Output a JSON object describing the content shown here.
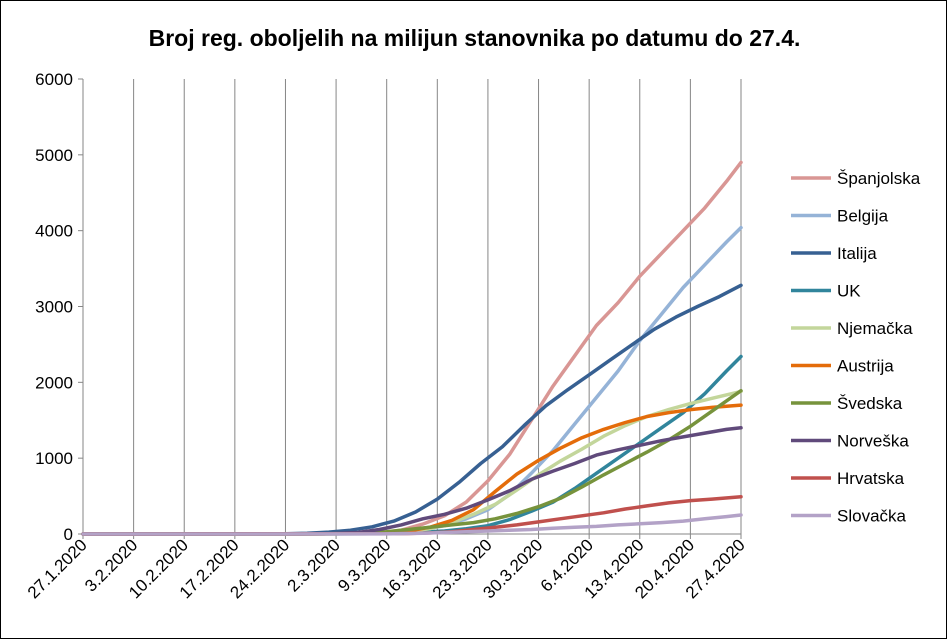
{
  "chart_data": {
    "type": "line",
    "title": "Broj reg. oboljelih na milijun stanovnika po datumu do 27.4.",
    "xlabel": "",
    "ylabel": "",
    "ylim": [
      0,
      6000
    ],
    "yticks": [
      0,
      1000,
      2000,
      3000,
      4000,
      5000,
      6000
    ],
    "x_range": [
      "27.1.2020",
      "27.4.2020"
    ],
    "x_tick_labels": [
      "27.1.2020",
      "3.2.2020",
      "10.2.2020",
      "17.2.2020",
      "24.2.2020",
      "2.3.2020",
      "9.3.2020",
      "16.3.2020",
      "23.3.2020",
      "30.3.2020",
      "6.4.2020",
      "13.4.2020",
      "20.4.2020",
      "27.4.2020"
    ],
    "grid": "vertical",
    "legend_position": "right",
    "series": [
      {
        "name": "Španjolska",
        "color": "#d99694",
        "points": [
          [
            "27.1.2020",
            0
          ],
          [
            "24.2.2020",
            0
          ],
          [
            "1.3.2020",
            2
          ],
          [
            "4.3.2020",
            5
          ],
          [
            "8.3.2020",
            15
          ],
          [
            "11.3.2020",
            50
          ],
          [
            "14.3.2020",
            130
          ],
          [
            "17.3.2020",
            240
          ],
          [
            "20.3.2020",
            420
          ],
          [
            "23.3.2020",
            700
          ],
          [
            "26.3.2020",
            1050
          ],
          [
            "29.3.2020",
            1500
          ],
          [
            "1.4.2020",
            1950
          ],
          [
            "4.4.2020",
            2350
          ],
          [
            "7.4.2020",
            2750
          ],
          [
            "10.4.2020",
            3050
          ],
          [
            "13.4.2020",
            3400
          ],
          [
            "16.4.2020",
            3700
          ],
          [
            "19.4.2020",
            4000
          ],
          [
            "22.4.2020",
            4300
          ],
          [
            "25.4.2020",
            4650
          ],
          [
            "27.4.2020",
            4900
          ]
        ]
      },
      {
        "name": "Belgija",
        "color": "#95b3d7",
        "points": [
          [
            "27.1.2020",
            0
          ],
          [
            "24.2.2020",
            0
          ],
          [
            "3.3.2020",
            2
          ],
          [
            "7.3.2020",
            15
          ],
          [
            "10.3.2020",
            30
          ],
          [
            "14.3.2020",
            60
          ],
          [
            "17.3.2020",
            110
          ],
          [
            "20.3.2020",
            200
          ],
          [
            "23.3.2020",
            320
          ],
          [
            "26.3.2020",
            520
          ],
          [
            "29.3.2020",
            800
          ],
          [
            "1.4.2020",
            1100
          ],
          [
            "4.4.2020",
            1450
          ],
          [
            "7.4.2020",
            1800
          ],
          [
            "10.4.2020",
            2150
          ],
          [
            "13.4.2020",
            2550
          ],
          [
            "16.4.2020",
            2900
          ],
          [
            "19.4.2020",
            3250
          ],
          [
            "22.4.2020",
            3550
          ],
          [
            "25.4.2020",
            3850
          ],
          [
            "27.4.2020",
            4040
          ]
        ]
      },
      {
        "name": "Italija",
        "color": "#376092",
        "points": [
          [
            "27.1.2020",
            0
          ],
          [
            "21.2.2020",
            1
          ],
          [
            "24.2.2020",
            4
          ],
          [
            "27.2.2020",
            10
          ],
          [
            "1.3.2020",
            25
          ],
          [
            "4.3.2020",
            50
          ],
          [
            "7.3.2020",
            95
          ],
          [
            "10.3.2020",
            170
          ],
          [
            "13.3.2020",
            290
          ],
          [
            "16.3.2020",
            460
          ],
          [
            "19.3.2020",
            680
          ],
          [
            "22.3.2020",
            930
          ],
          [
            "25.3.2020",
            1150
          ],
          [
            "28.3.2020",
            1430
          ],
          [
            "31.3.2020",
            1690
          ],
          [
            "3.4.2020",
            1900
          ],
          [
            "6.4.2020",
            2100
          ],
          [
            "9.4.2020",
            2300
          ],
          [
            "12.4.2020",
            2500
          ],
          [
            "15.4.2020",
            2700
          ],
          [
            "18.4.2020",
            2860
          ],
          [
            "21.4.2020",
            3000
          ],
          [
            "24.4.2020",
            3130
          ],
          [
            "27.4.2020",
            3280
          ]
        ]
      },
      {
        "name": "UK",
        "color": "#31859c",
        "points": [
          [
            "27.1.2020",
            0
          ],
          [
            "1.3.2020",
            1
          ],
          [
            "7.3.2020",
            4
          ],
          [
            "11.3.2020",
            10
          ],
          [
            "14.3.2020",
            25
          ],
          [
            "17.3.2020",
            40
          ],
          [
            "20.3.2020",
            70
          ],
          [
            "23.3.2020",
            110
          ],
          [
            "26.3.2020",
            190
          ],
          [
            "29.3.2020",
            300
          ],
          [
            "1.4.2020",
            420
          ],
          [
            "4.4.2020",
            600
          ],
          [
            "7.4.2020",
            800
          ],
          [
            "10.4.2020",
            1000
          ],
          [
            "13.4.2020",
            1200
          ],
          [
            "16.4.2020",
            1400
          ],
          [
            "19.4.2020",
            1600
          ],
          [
            "22.4.2020",
            1850
          ],
          [
            "25.4.2020",
            2150
          ],
          [
            "27.4.2020",
            2340
          ]
        ]
      },
      {
        "name": "Njemačka",
        "color": "#c3d69b",
        "points": [
          [
            "27.1.2020",
            0
          ],
          [
            "24.2.2020",
            0
          ],
          [
            "1.3.2020",
            1
          ],
          [
            "6.3.2020",
            8
          ],
          [
            "9.3.2020",
            15
          ],
          [
            "12.3.2020",
            30
          ],
          [
            "15.3.2020",
            70
          ],
          [
            "18.3.2020",
            150
          ],
          [
            "21.3.2020",
            260
          ],
          [
            "24.3.2020",
            390
          ],
          [
            "27.3.2020",
            580
          ],
          [
            "30.3.2020",
            780
          ],
          [
            "2.4.2020",
            960
          ],
          [
            "5.4.2020",
            1120
          ],
          [
            "8.4.2020",
            1290
          ],
          [
            "11.4.2020",
            1430
          ],
          [
            "14.4.2020",
            1550
          ],
          [
            "17.4.2020",
            1640
          ],
          [
            "20.4.2020",
            1720
          ],
          [
            "23.4.2020",
            1790
          ],
          [
            "27.4.2020",
            1880
          ]
        ]
      },
      {
        "name": "Austrija",
        "color": "#e46c0a",
        "points": [
          [
            "27.1.2020",
            0
          ],
          [
            "28.2.2020",
            1
          ],
          [
            "3.3.2020",
            2
          ],
          [
            "6.3.2020",
            5
          ],
          [
            "9.3.2020",
            15
          ],
          [
            "12.3.2020",
            40
          ],
          [
            "15.3.2020",
            90
          ],
          [
            "18.3.2020",
            180
          ],
          [
            "21.3.2020",
            320
          ],
          [
            "24.3.2020",
            560
          ],
          [
            "27.3.2020",
            790
          ],
          [
            "30.3.2020",
            970
          ],
          [
            "2.4.2020",
            1130
          ],
          [
            "5.4.2020",
            1270
          ],
          [
            "8.4.2020",
            1380
          ],
          [
            "11.4.2020",
            1470
          ],
          [
            "14.4.2020",
            1550
          ],
          [
            "17.4.2020",
            1600
          ],
          [
            "20.4.2020",
            1640
          ],
          [
            "23.4.2020",
            1670
          ],
          [
            "27.4.2020",
            1700
          ]
        ]
      },
      {
        "name": "Švedska",
        "color": "#77933c",
        "points": [
          [
            "27.1.2020",
            0
          ],
          [
            "26.2.2020",
            1
          ],
          [
            "1.3.2020",
            2
          ],
          [
            "5.3.2020",
            10
          ],
          [
            "9.3.2020",
            30
          ],
          [
            "12.3.2020",
            60
          ],
          [
            "15.3.2020",
            90
          ],
          [
            "18.3.2020",
            120
          ],
          [
            "21.3.2020",
            150
          ],
          [
            "24.3.2020",
            200
          ],
          [
            "27.3.2020",
            270
          ],
          [
            "30.3.2020",
            360
          ],
          [
            "2.4.2020",
            470
          ],
          [
            "5.4.2020",
            620
          ],
          [
            "8.4.2020",
            780
          ],
          [
            "11.4.2020",
            930
          ],
          [
            "14.4.2020",
            1080
          ],
          [
            "17.4.2020",
            1240
          ],
          [
            "20.4.2020",
            1420
          ],
          [
            "23.4.2020",
            1620
          ],
          [
            "27.4.2020",
            1890
          ]
        ]
      },
      {
        "name": "Norveška",
        "color": "#604a7b",
        "points": [
          [
            "27.1.2020",
            0
          ],
          [
            "26.2.2020",
            1
          ],
          [
            "1.3.2020",
            4
          ],
          [
            "5.3.2020",
            20
          ],
          [
            "8.3.2020",
            60
          ],
          [
            "11.3.2020",
            120
          ],
          [
            "14.3.2020",
            200
          ],
          [
            "17.3.2020",
            260
          ],
          [
            "20.3.2020",
            340
          ],
          [
            "23.3.2020",
            450
          ],
          [
            "26.3.2020",
            570
          ],
          [
            "29.3.2020",
            720
          ],
          [
            "1.4.2020",
            830
          ],
          [
            "4.4.2020",
            930
          ],
          [
            "7.4.2020",
            1040
          ],
          [
            "10.4.2020",
            1110
          ],
          [
            "13.4.2020",
            1170
          ],
          [
            "16.4.2020",
            1230
          ],
          [
            "19.4.2020",
            1280
          ],
          [
            "22.4.2020",
            1330
          ],
          [
            "25.4.2020",
            1380
          ],
          [
            "27.4.2020",
            1400
          ]
        ]
      },
      {
        "name": "Hrvatska",
        "color": "#c0504d",
        "points": [
          [
            "27.1.2020",
            0
          ],
          [
            "25.2.2020",
            1
          ],
          [
            "1.3.2020",
            2
          ],
          [
            "8.3.2020",
            3
          ],
          [
            "12.3.2020",
            6
          ],
          [
            "15.3.2020",
            15
          ],
          [
            "18.3.2020",
            30
          ],
          [
            "21.3.2020",
            60
          ],
          [
            "24.3.2020",
            90
          ],
          [
            "27.3.2020",
            120
          ],
          [
            "30.3.2020",
            160
          ],
          [
            "2.4.2020",
            200
          ],
          [
            "5.4.2020",
            240
          ],
          [
            "8.4.2020",
            280
          ],
          [
            "11.4.2020",
            330
          ],
          [
            "14.4.2020",
            370
          ],
          [
            "17.4.2020",
            410
          ],
          [
            "20.4.2020",
            440
          ],
          [
            "23.4.2020",
            460
          ],
          [
            "27.4.2020",
            490
          ]
        ]
      },
      {
        "name": "Slovačka",
        "color": "#b3a2c7",
        "points": [
          [
            "27.1.2020",
            0
          ],
          [
            "6.3.2020",
            1
          ],
          [
            "10.3.2020",
            2
          ],
          [
            "14.3.2020",
            10
          ],
          [
            "17.3.2020",
            20
          ],
          [
            "20.3.2020",
            30
          ],
          [
            "23.3.2020",
            40
          ],
          [
            "26.3.2020",
            50
          ],
          [
            "29.3.2020",
            60
          ],
          [
            "1.4.2020",
            75
          ],
          [
            "4.4.2020",
            90
          ],
          [
            "7.4.2020",
            100
          ],
          [
            "10.4.2020",
            120
          ],
          [
            "13.4.2020",
            135
          ],
          [
            "16.4.2020",
            150
          ],
          [
            "19.4.2020",
            170
          ],
          [
            "22.4.2020",
            200
          ],
          [
            "25.4.2020",
            230
          ],
          [
            "27.4.2020",
            250
          ]
        ]
      }
    ]
  }
}
